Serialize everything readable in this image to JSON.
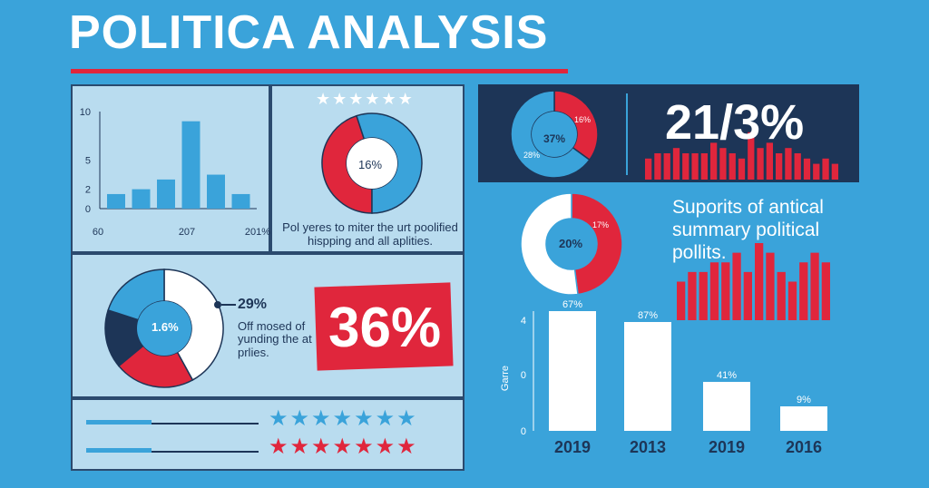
{
  "header": {
    "title": "POLITICA ANALYSIS"
  },
  "colors": {
    "red": "#e0263c",
    "blue": "#3aa3da",
    "navy": "#1d3557",
    "light": "#b9dcef",
    "white": "#ffffff"
  },
  "panel_bar": {
    "chart_data": {
      "type": "bar",
      "y_ticks": [
        "10",
        "5",
        "2",
        "0"
      ],
      "x_ticks": [
        "60",
        "207",
        "201%"
      ],
      "values": [
        1.5,
        2,
        3,
        9,
        3.5,
        1.5
      ]
    }
  },
  "panel_donut": {
    "stars": "★★★★★★",
    "center_label": "16%",
    "caption_line1": "Pol yeres to miter the urt poolified",
    "caption_line2": "hispping and all aplities.",
    "chart_data": {
      "type": "pie",
      "segments": [
        {
          "value": 45,
          "color": "#e0263c"
        },
        {
          "value": 55,
          "color": "#3aa3da"
        }
      ]
    }
  },
  "panel_pie": {
    "center_label": "1.6%",
    "callout": "29%",
    "text_line1": "Off mosed of",
    "text_line2": "yunding the at",
    "text_line3": "prlies.",
    "big_value": "36%",
    "chart_data": {
      "type": "pie",
      "segments": [
        {
          "value": 42,
          "color": "#ffffff"
        },
        {
          "value": 22,
          "color": "#e0263c"
        },
        {
          "value": 16,
          "color": "#1d3557"
        },
        {
          "value": 20,
          "color": "#3aa3da"
        }
      ]
    }
  },
  "panel_stars": {
    "row1": "★★★★★★★",
    "row2": "★★★★★★★"
  },
  "dark_panel": {
    "donut_labels": [
      "37%",
      "16%",
      "28%"
    ],
    "big_value": "21/3%",
    "chart_data": {
      "type": "pie",
      "segments": [
        {
          "value": 35,
          "color": "#e0263c"
        },
        {
          "value": 65,
          "color": "#3aa3da"
        }
      ]
    },
    "bars": [
      4,
      5,
      5,
      6,
      5,
      5,
      5,
      7,
      6,
      5,
      4,
      9,
      6,
      7,
      5,
      6,
      5,
      4,
      3,
      4,
      3
    ]
  },
  "right_donut": {
    "center_label": "20%",
    "callout": "17%",
    "chart_data": {
      "type": "pie",
      "segments": [
        {
          "value": 48,
          "color": "#e0263c"
        },
        {
          "value": 52,
          "color": "#ffffff"
        }
      ]
    }
  },
  "right_text": {
    "line1": "Suporits of antical",
    "line2": "summary political",
    "line3": "pollits."
  },
  "right_red_bars": [
    4,
    5,
    5,
    6,
    6,
    7,
    5,
    8,
    7,
    5,
    4,
    6,
    7,
    6
  ],
  "bottom_bar": {
    "chart_data": {
      "type": "bar",
      "categories": [
        "2019",
        "2013",
        "2019",
        "2016"
      ],
      "values": [
        67,
        87,
        41,
        9
      ],
      "data_labels": [
        "67%",
        "87%",
        "41%",
        "9%"
      ],
      "y_ticks": [
        "4",
        "0",
        "0"
      ],
      "ylabel": "Garre"
    }
  }
}
